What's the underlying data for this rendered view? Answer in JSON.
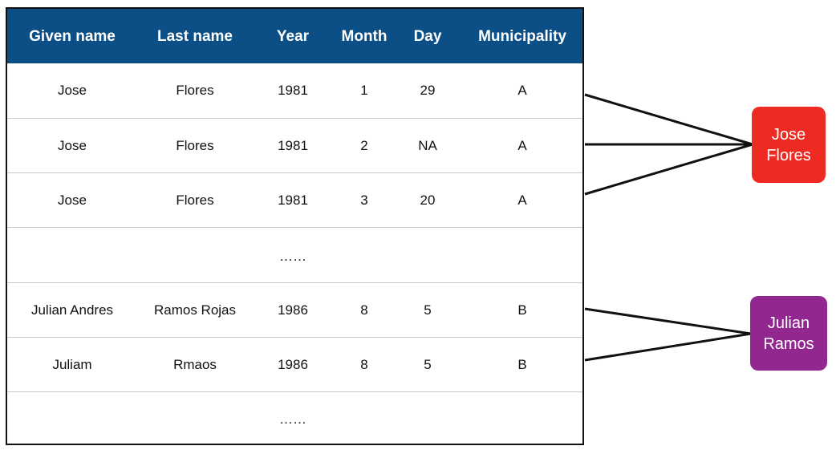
{
  "table": {
    "headers": [
      "Given name",
      "Last name",
      "Year",
      "Month",
      "Day",
      "Municipality"
    ],
    "rows": [
      [
        "Jose",
        "Flores",
        "1981",
        "1",
        "29",
        "A"
      ],
      [
        "Jose",
        "Flores",
        "1981",
        "2",
        "NA",
        "A"
      ],
      [
        "Jose",
        "Flores",
        "1981",
        "3",
        "20",
        "A"
      ],
      [
        "",
        "",
        "……",
        "",
        "",
        ""
      ],
      [
        "Julian Andres",
        "Ramos Rojas",
        "1986",
        "8",
        "5",
        "B"
      ],
      [
        "Juliam",
        "Rmaos",
        "1986",
        "8",
        "5",
        "B"
      ],
      [
        "",
        "",
        "……",
        "",
        "",
        ""
      ]
    ]
  },
  "entities": [
    {
      "line1": "Jose",
      "line2": "Flores",
      "color": "#ee2b22"
    },
    {
      "line1": "Julian",
      "line2": "Ramos",
      "color": "#92278f"
    }
  ]
}
